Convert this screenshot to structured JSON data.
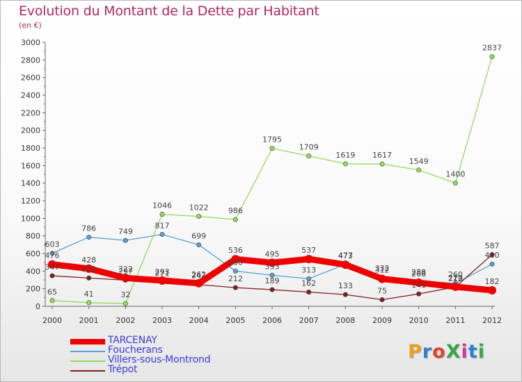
{
  "header": {
    "title": "Evolution du Montant de la Dette par Habitant",
    "subtitle": "(en €)"
  },
  "logo": {
    "text": "ProXiti",
    "colors": [
      "#e9a023",
      "#2e7fd0",
      "#e2432a",
      "#38a845",
      "#d1349a",
      "#2e7fd0",
      "#38a845"
    ]
  },
  "chart_data": {
    "type": "line",
    "x": [
      "2000",
      "2001",
      "2002",
      "2003",
      "2004",
      "2005",
      "2006",
      "2007",
      "2008",
      "2009",
      "2010",
      "2011",
      "2012"
    ],
    "ylim": [
      0,
      3000
    ],
    "yticks": [
      "0",
      "200",
      "400",
      "600",
      "800",
      "1000",
      "1200",
      "1400",
      "1600",
      "1800",
      "2000",
      "2200",
      "2400",
      "2600",
      "2800",
      "3000"
    ],
    "grid": false,
    "legend_position": "bottom-left",
    "series": [
      {
        "name": "TARCENAY",
        "color": "#ee0000",
        "values": [
          476,
          428,
          322,
          293,
          262,
          536,
          495,
          537,
          473,
          312,
          268,
          222,
          182
        ],
        "labels": [
          "476",
          "428",
          "322",
          "293",
          "262",
          "536",
          "495",
          "537",
          "473",
          "312",
          "268",
          "222",
          "182"
        ]
      },
      {
        "name": "Foucherans",
        "color": "#5a9fd4",
        "values": [
          603,
          786,
          749,
          817,
          699,
          400,
          353,
          313,
          477,
          332,
          288,
          260,
          480
        ],
        "labels": [
          "603",
          "786",
          "749",
          "817",
          "699",
          "400",
          "353",
          "313",
          "477",
          "332",
          "288",
          "260",
          "480"
        ]
      },
      {
        "name": "Villers-sous-Montrond",
        "color": "#8fdc5c",
        "values": [
          65,
          41,
          32,
          1046,
          1022,
          986,
          1795,
          1709,
          1619,
          1617,
          1549,
          1400,
          2837
        ],
        "labels": [
          "65",
          "41",
          "32",
          "1046",
          "1022",
          "986",
          "1795",
          "1709",
          "1619",
          "1617",
          "1549",
          "1400",
          "2837"
        ]
      },
      {
        "name": "Trépot",
        "color": "#7d1f1f",
        "values": [
          347,
          322,
          297,
          271,
          247,
          212,
          189,
          162,
          133,
          75,
          141,
          219,
          587
        ],
        "labels": [
          "347",
          "322",
          "297",
          "271",
          "247",
          "212",
          "189",
          "162",
          "133",
          "75",
          "141",
          "219",
          "587"
        ]
      }
    ]
  }
}
